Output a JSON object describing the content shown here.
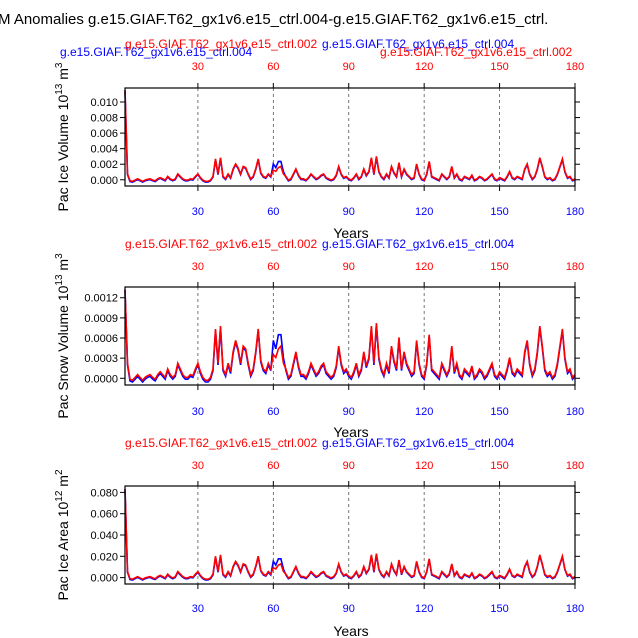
{
  "title": "M Anomalies g.e15.GIAF.T62_gx1v6.e15_ctrl.004-g.e15.GIAF.T62_gx1v6.e15_ctrl.",
  "colors": {
    "series_a": "#0000ff",
    "series_b": "#ff0000",
    "axis": "#000000"
  },
  "chart_data": [
    {
      "type": "line",
      "ylabel": "Pac Ice Volume 10",
      "ylabel_exp": "13",
      "ylabel_unit": " m",
      "ylabel_unit_exp": "3",
      "xlabel": "Years",
      "label_a": "g.e15.GIAF.T62_gx1v6.e15_ctrl.004",
      "label_b": "g.e15.GIAF.T62_gx1v6.e15_ctrl.002",
      "top_left_label": "g.e15.GIAF.T62_gx1v6.e15_ctrl.004",
      "xlim": [
        1,
        180
      ],
      "ylim": [
        -0.0008,
        0.0118
      ],
      "yticks": [
        0.0,
        0.002,
        0.004,
        0.006,
        0.008,
        0.01
      ],
      "ytick_labels": [
        "0.000",
        "0.002",
        "0.004",
        "0.006",
        "0.008",
        "0.010"
      ],
      "xticks": [
        30,
        60,
        90,
        120,
        150,
        180
      ],
      "xtick_labels": [
        "30",
        "60",
        "90",
        "120",
        "150",
        "180"
      ],
      "grid_x": true,
      "peak": 0.0115,
      "scale": 0.0032,
      "base": -0.0002
    },
    {
      "type": "line",
      "ylabel": "Pac Snow Volume 10",
      "ylabel_exp": "13",
      "ylabel_unit": " m",
      "ylabel_unit_exp": "3",
      "xlabel": "Years",
      "label_a": "g.e15.GIAF.T62_gx1v6.e15_ctrl.004",
      "label_b": "g.e15.GIAF.T62_gx1v6.e15_ctrl.002",
      "xlim": [
        1,
        180
      ],
      "ylim": [
        -0.0001,
        0.00136
      ],
      "yticks": [
        0.0,
        0.0003,
        0.0006,
        0.0009,
        0.0012
      ],
      "ytick_labels": [
        "0.0000",
        "0.0003",
        "0.0006",
        "0.0009",
        "0.0012"
      ],
      "xticks": [
        30,
        60,
        90,
        120,
        150,
        180
      ],
      "xtick_labels": [
        "30",
        "60",
        "90",
        "120",
        "150",
        "180"
      ],
      "grid_x": true,
      "peak": 0.00132,
      "scale": 0.00085,
      "base": -3e-05
    },
    {
      "type": "line",
      "ylabel": "Pac Ice Area 10",
      "ylabel_exp": "12",
      "ylabel_unit": " m",
      "ylabel_unit_exp": "2",
      "xlabel": "Years",
      "label_a": "g.e15.GIAF.T62_gx1v6.e15_ctrl.004",
      "label_b": "g.e15.GIAF.T62_gx1v6.e15_ctrl.002",
      "xlim": [
        1,
        180
      ],
      "ylim": [
        -0.006,
        0.086
      ],
      "yticks": [
        0.0,
        0.02,
        0.04,
        0.06,
        0.08
      ],
      "ytick_labels": [
        "0.000",
        "0.020",
        "0.040",
        "0.060",
        "0.080"
      ],
      "xticks": [
        30,
        60,
        90,
        120,
        150,
        180
      ],
      "xtick_labels": [
        "30",
        "60",
        "90",
        "120",
        "150",
        "180"
      ],
      "grid_x": true,
      "peak": 0.083,
      "scale": 0.024,
      "base": -0.0015
    }
  ],
  "series_shape": {
    "years": [
      1,
      2,
      3,
      4,
      5,
      6,
      7,
      8,
      9,
      10,
      11,
      12,
      13,
      14,
      15,
      16,
      17,
      18,
      19,
      20,
      21,
      22,
      23,
      24,
      25,
      26,
      27,
      28,
      29,
      30,
      31,
      32,
      33,
      34,
      35,
      36,
      37,
      38,
      39,
      40,
      41,
      42,
      43,
      44,
      45,
      46,
      47,
      48,
      49,
      50,
      51,
      52,
      53,
      54,
      55,
      56,
      57,
      58,
      59,
      60,
      61,
      62,
      63,
      64,
      65,
      66,
      67,
      68,
      69,
      70,
      71,
      72,
      73,
      74,
      75,
      76,
      77,
      78,
      79,
      80,
      81,
      82,
      83,
      84,
      85,
      86,
      87,
      88,
      89,
      90,
      91,
      92,
      93,
      94,
      95,
      96,
      97,
      98,
      99,
      100,
      101,
      102,
      103,
      104,
      105,
      106,
      107,
      108,
      109,
      110,
      111,
      112,
      113,
      114,
      115,
      116,
      117,
      118,
      119,
      120,
      121,
      122,
      123,
      124,
      125,
      126,
      127,
      128,
      129,
      130,
      131,
      132,
      133,
      134,
      135,
      136,
      137,
      138,
      139,
      140,
      141,
      142,
      143,
      144,
      145,
      146,
      147,
      148,
      149,
      150,
      151,
      152,
      153,
      154,
      155,
      156,
      157,
      158,
      159,
      160,
      161,
      162,
      163,
      164,
      165,
      166,
      167,
      168,
      169,
      170,
      171,
      172,
      173,
      174,
      175,
      176,
      177,
      178,
      179,
      180
    ],
    "shape_b": [
      1.0,
      0.3,
      0.02,
      0.0,
      0.05,
      0.1,
      0.05,
      0.0,
      0.05,
      0.08,
      0.1,
      0.05,
      0.02,
      0.1,
      0.15,
      0.1,
      0.05,
      0.2,
      0.1,
      0.05,
      0.1,
      0.3,
      0.2,
      0.1,
      0.05,
      0.05,
      0.1,
      0.08,
      0.2,
      0.3,
      0.15,
      0.05,
      0.0,
      0.0,
      0.05,
      0.2,
      0.9,
      0.3,
      0.95,
      0.2,
      0.1,
      0.3,
      0.15,
      0.5,
      0.7,
      0.55,
      0.3,
      0.6,
      0.55,
      0.3,
      0.1,
      0.2,
      0.5,
      0.9,
      0.35,
      0.2,
      0.15,
      0.3,
      0.2,
      0.45,
      0.4,
      0.55,
      0.6,
      0.3,
      0.2,
      0.05,
      0.1,
      0.3,
      0.5,
      0.25,
      0.1,
      0.1,
      0.05,
      0.15,
      0.3,
      0.2,
      0.1,
      0.15,
      0.25,
      0.3,
      0.15,
      0.1,
      0.05,
      0.1,
      0.25,
      0.6,
      0.3,
      0.15,
      0.2,
      0.1,
      0.05,
      0.15,
      0.3,
      0.1,
      0.2,
      0.5,
      0.25,
      0.4,
      0.95,
      0.3,
      1.0,
      0.4,
      0.2,
      0.1,
      0.3,
      0.15,
      0.6,
      0.35,
      0.2,
      0.75,
      0.2,
      0.5,
      0.3,
      0.2,
      0.1,
      0.15,
      0.7,
      0.3,
      0.1,
      0.05,
      0.3,
      0.8,
      0.2,
      0.15,
      0.1,
      0.05,
      0.3,
      0.2,
      0.1,
      0.2,
      0.6,
      0.15,
      0.3,
      0.1,
      0.05,
      0.2,
      0.15,
      0.1,
      0.25,
      0.05,
      0.1,
      0.2,
      0.15,
      0.05,
      0.1,
      0.2,
      0.3,
      0.1,
      0.05,
      0.15,
      0.1,
      0.05,
      0.2,
      0.4,
      0.15,
      0.1,
      0.2,
      0.15,
      0.1,
      0.5,
      0.7,
      0.3,
      0.1,
      0.2,
      0.5,
      0.95,
      0.6,
      0.2,
      0.1,
      0.15,
      0.05,
      0.1,
      0.3,
      0.6,
      0.9,
      0.4,
      0.15,
      0.2,
      0.05,
      0.1
    ],
    "shape_a_delta": {
      "60": 0.25,
      "61": 0.15,
      "62": 0.25,
      "63": 0.2,
      "64": 0.1
    }
  }
}
